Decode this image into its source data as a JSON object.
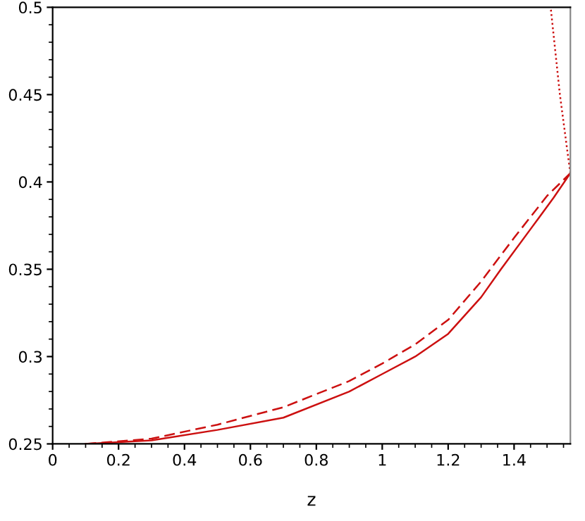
{
  "chart_data": {
    "type": "line",
    "xlabel": "z",
    "xlim": [
      0,
      1.5708
    ],
    "ylim": [
      0.25,
      0.5
    ],
    "xticks": [
      0,
      0.2,
      0.4,
      0.6,
      0.8,
      1,
      1.2,
      1.4
    ],
    "yticks": [
      0.25,
      0.3,
      0.35,
      0.4,
      0.45,
      0.5
    ],
    "grid": false,
    "legend": false,
    "series": [
      {
        "color": "#cc1010",
        "line_style": "solid",
        "x": [
          0.1,
          0.3,
          0.5,
          0.7,
          0.9,
          1.0,
          1.1,
          1.2,
          1.3,
          1.36,
          1.45,
          1.52,
          1.5708
        ],
        "values": [
          0.25,
          0.252,
          0.258,
          0.265,
          0.28,
          0.29,
          0.3,
          0.313,
          0.334,
          0.35,
          0.373,
          0.391,
          0.405
        ]
      },
      {
        "color": "#cc1010",
        "line_style": "dashed",
        "x": [
          0.1,
          0.3,
          0.5,
          0.7,
          0.9,
          1.0,
          1.1,
          1.2,
          1.3,
          1.4,
          1.5,
          1.5708
        ],
        "values": [
          0.25,
          0.253,
          0.261,
          0.271,
          0.286,
          0.296,
          0.307,
          0.321,
          0.343,
          0.368,
          0.392,
          0.405
        ]
      },
      {
        "color": "#cc1010",
        "line_style": "dotted",
        "x": [
          1.5708,
          1.56,
          1.539,
          1.511
        ],
        "values": [
          0.405,
          0.42,
          0.45,
          0.5
        ]
      }
    ]
  }
}
